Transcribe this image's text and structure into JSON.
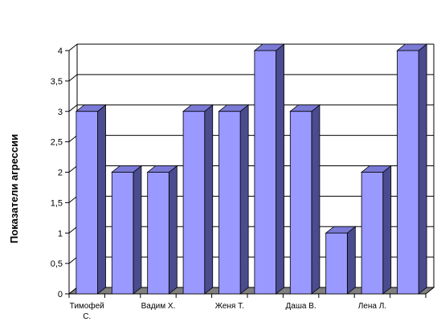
{
  "chart_data": {
    "type": "bar",
    "title": "",
    "xlabel": "",
    "ylabel": "Показатели агрессии",
    "ylim": [
      0,
      4
    ],
    "yticks": [
      "0",
      "0,5",
      "1",
      "1,5",
      "2",
      "2,5",
      "3",
      "3,5",
      "4"
    ],
    "category_labels": [
      "Тимофей С.",
      "",
      "Вадим Х.",
      "",
      "Женя Т.",
      "",
      "Даша В.",
      "",
      "Лена Л.",
      ""
    ],
    "values": [
      3,
      2,
      2,
      3,
      3,
      4,
      3,
      1,
      2,
      4
    ],
    "grid": true,
    "legend": "none",
    "colors": {
      "bar_front": "#9999FF",
      "bar_side": "#4B4B8F",
      "bar_top": "#7A7AD6",
      "floor": "#808080",
      "grid": "#000000"
    }
  }
}
